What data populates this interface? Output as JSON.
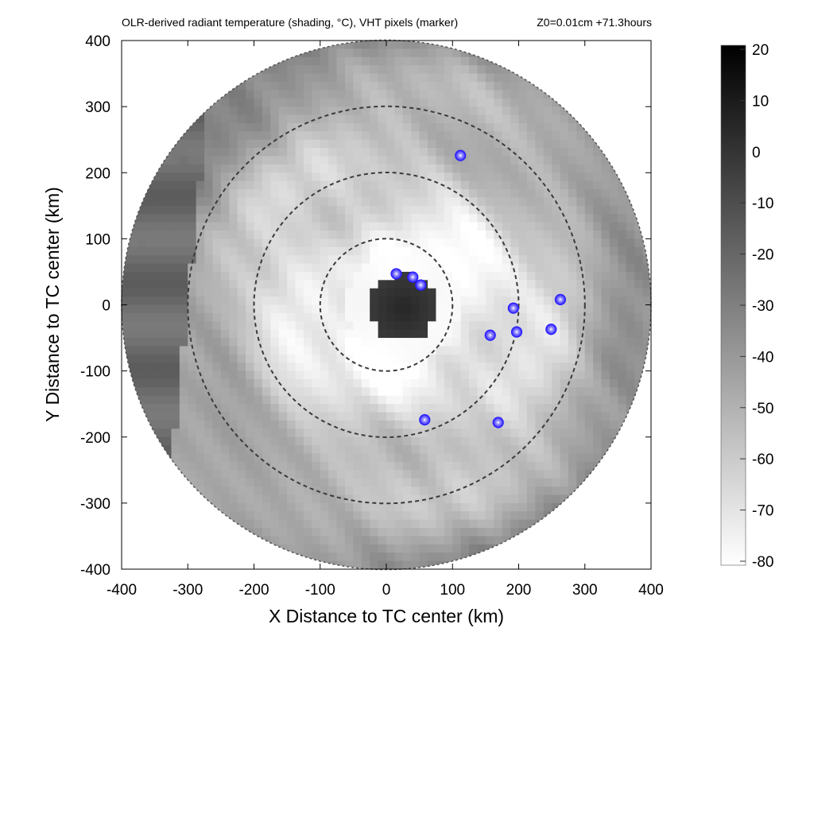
{
  "chart_data": {
    "type": "heatmap",
    "title_left": "OLR-derived radiant temperature (shading, °C), VHT pixels (marker)",
    "title_right": "Z0=0.01cm  +71.3hours",
    "xlabel": "X Distance to TC center (km)",
    "ylabel": "Y Distance to TC center (km)",
    "xlim": [
      -400,
      400
    ],
    "ylim": [
      -400,
      400
    ],
    "x_ticks": [
      -400,
      -300,
      -200,
      -100,
      0,
      100,
      200,
      300,
      400
    ],
    "y_ticks": [
      -400,
      -300,
      -200,
      -100,
      0,
      100,
      200,
      300,
      400
    ],
    "x_tick_labels": [
      "-400",
      "-300",
      "-200",
      "-100",
      "0",
      "100",
      "200",
      "300",
      "400"
    ],
    "y_tick_labels": [
      "-400",
      "-300",
      "-200",
      "-100",
      "0",
      "100",
      "200",
      "300",
      "400"
    ],
    "colorbar": {
      "min": -80,
      "max": 20,
      "colormap": "grayscale: white at -80 °C to black at 20 °C",
      "ticks": [
        20,
        10,
        0,
        -10,
        -20,
        -30,
        -40,
        -50,
        -60,
        -70,
        -80
      ],
      "tick_labels": [
        "20",
        "10",
        "0",
        "-10",
        "-20",
        "-30",
        "-40",
        "-50",
        "-60",
        "-70",
        "-80"
      ]
    },
    "data_domain_radius_km": 400,
    "range_rings_km": [
      100,
      200,
      300
    ],
    "eye": {
      "x": 25,
      "y": -5,
      "radius_km": 50,
      "temperature_c": 5
    },
    "eyewall_temperature_c": -78,
    "vht_marker_color": "#2a1cff",
    "vht_pixels": [
      {
        "x": 15,
        "y": 47
      },
      {
        "x": 40,
        "y": 42
      },
      {
        "x": 52,
        "y": 30
      },
      {
        "x": 112,
        "y": 226
      },
      {
        "x": 192,
        "y": -5
      },
      {
        "x": 263,
        "y": 8
      },
      {
        "x": 157,
        "y": -46
      },
      {
        "x": 197,
        "y": -41
      },
      {
        "x": 249,
        "y": -37
      },
      {
        "x": 169,
        "y": -178
      },
      {
        "x": 58,
        "y": -174
      }
    ],
    "grid": false
  }
}
